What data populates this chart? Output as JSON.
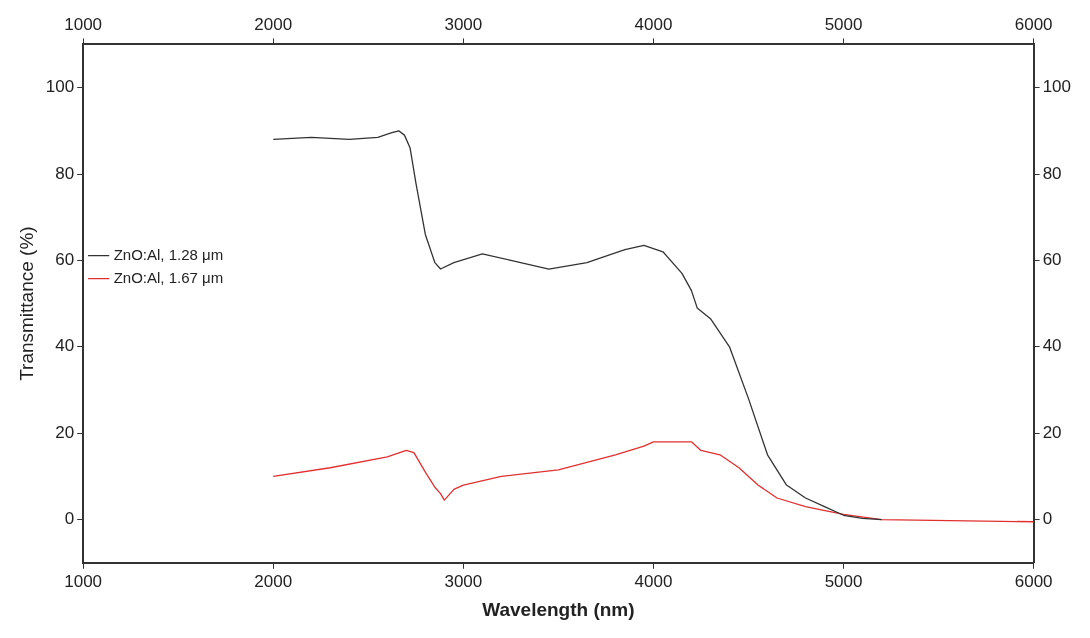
{
  "chart_data": {
    "type": "line",
    "xlabel": "Wavelength (nm)",
    "ylabel": "Transmittance (%)",
    "xlim": [
      1000,
      6000
    ],
    "xticks": [
      1000,
      2000,
      3000,
      4000,
      5000,
      6000
    ],
    "x2lim": [
      1000,
      6000
    ],
    "x2ticks": [
      1000,
      2000,
      3000,
      4000,
      5000,
      6000
    ],
    "ylim": [
      -10,
      110
    ],
    "yticks": [
      0,
      20,
      40,
      60,
      80,
      100
    ],
    "y2lim": [
      -10,
      110
    ],
    "y2ticks": [
      0,
      20,
      40,
      60,
      80,
      100
    ],
    "grid": false,
    "legend": "top",
    "marker": "none",
    "line_style": "solid",
    "series": [
      {
        "name": "ZnO:Al, 1.28 μm",
        "color": "#333333",
        "x": [
          2000,
          2200,
          2400,
          2550,
          2620,
          2660,
          2690,
          2720,
          2750,
          2800,
          2850,
          2880,
          2950,
          3100,
          3250,
          3450,
          3650,
          3850,
          3950,
          4050,
          4150,
          4200,
          4230,
          4300,
          4400,
          4500,
          4600,
          4700,
          4800,
          4900,
          5000,
          5100,
          5200
        ],
        "values": [
          88,
          88.5,
          88,
          88.5,
          89.5,
          90,
          89,
          86,
          78,
          66,
          59.5,
          58,
          59.5,
          61.5,
          60,
          58,
          59.5,
          62.5,
          63.5,
          62,
          57,
          53,
          49,
          46.5,
          40,
          28,
          15,
          8,
          5,
          3,
          1,
          0.3,
          0
        ]
      },
      {
        "name": "ZnO:Al, 1.67 μm",
        "color": "#e03030",
        "x": [
          2000,
          2300,
          2600,
          2700,
          2740,
          2800,
          2850,
          2880,
          2900,
          2950,
          3000,
          3200,
          3500,
          3800,
          3950,
          4000,
          4200,
          4250,
          4350,
          4450,
          4550,
          4650,
          4800,
          5000,
          5200,
          6000
        ],
        "values": [
          10,
          12,
          14.5,
          16,
          15.5,
          11,
          7.5,
          6,
          4.5,
          7,
          8,
          10,
          11.5,
          15,
          17,
          18,
          18,
          16,
          15,
          12,
          8,
          5,
          3,
          1.2,
          0,
          -0.5
        ]
      }
    ]
  }
}
